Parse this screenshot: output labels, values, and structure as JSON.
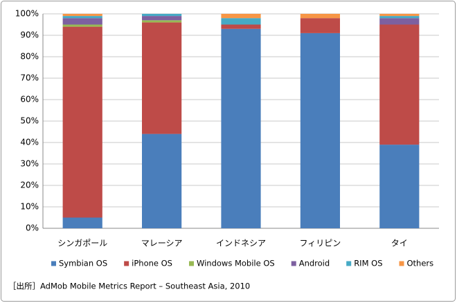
{
  "chart_data": {
    "type": "stacked_bar",
    "categories": [
      "シンガポール",
      "マレーシア",
      "インドネシア",
      "フィリピン",
      "タイ"
    ],
    "series": [
      {
        "name": "Symbian OS",
        "color": "#4a7ebb",
        "values": [
          5,
          44,
          93,
          91,
          39
        ]
      },
      {
        "name": "iPhone OS",
        "color": "#be4b48",
        "values": [
          89,
          52,
          2,
          7,
          56
        ]
      },
      {
        "name": "Windows Mobile OS",
        "color": "#98b954",
        "values": [
          1,
          1,
          0,
          0,
          0
        ]
      },
      {
        "name": "Android",
        "color": "#7d60a0",
        "values": [
          3,
          2,
          0,
          0,
          3
        ]
      },
      {
        "name": "RIM OS",
        "color": "#46aac5",
        "values": [
          1,
          1,
          3,
          0,
          1
        ]
      },
      {
        "name": "Others",
        "color": "#f79646",
        "values": [
          1,
          0,
          2,
          2,
          1
        ]
      }
    ],
    "ylim": [
      0,
      100
    ],
    "yticks": [
      {
        "value": 0,
        "label": "0%"
      },
      {
        "value": 10,
        "label": "10%"
      },
      {
        "value": 20,
        "label": "20%"
      },
      {
        "value": 30,
        "label": "30%"
      },
      {
        "value": 40,
        "label": "40%"
      },
      {
        "value": 50,
        "label": "50%"
      },
      {
        "value": 60,
        "label": "60%"
      },
      {
        "value": 70,
        "label": "70%"
      },
      {
        "value": 80,
        "label": "80%"
      },
      {
        "value": 90,
        "label": "90%"
      },
      {
        "value": 100,
        "label": "100%"
      }
    ],
    "grid": true,
    "legend": "bottom",
    "source": "［出所］AdMob Mobile Metrics Report – Southeast Asia, 2010"
  }
}
